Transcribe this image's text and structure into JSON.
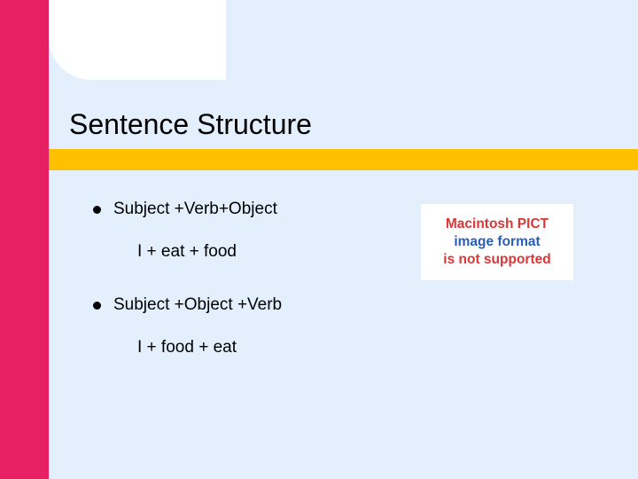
{
  "colors": {
    "left_stripe": "#e62062",
    "main_bg": "#e3effc",
    "yellow_bar": "#ffc002",
    "notch_fill": "#ffffff",
    "bullet_fill": "#000000"
  },
  "title": "Sentence Structure",
  "bullets": [
    {
      "label": "Subject +Verb+Object",
      "example": "I +  eat +  food"
    },
    {
      "label": "Subject +Object +Verb",
      "example": "I + food + eat"
    }
  ],
  "pict_placeholder": {
    "line1": "Macintosh PICT",
    "line2": "image format",
    "line3": "is not supported"
  }
}
